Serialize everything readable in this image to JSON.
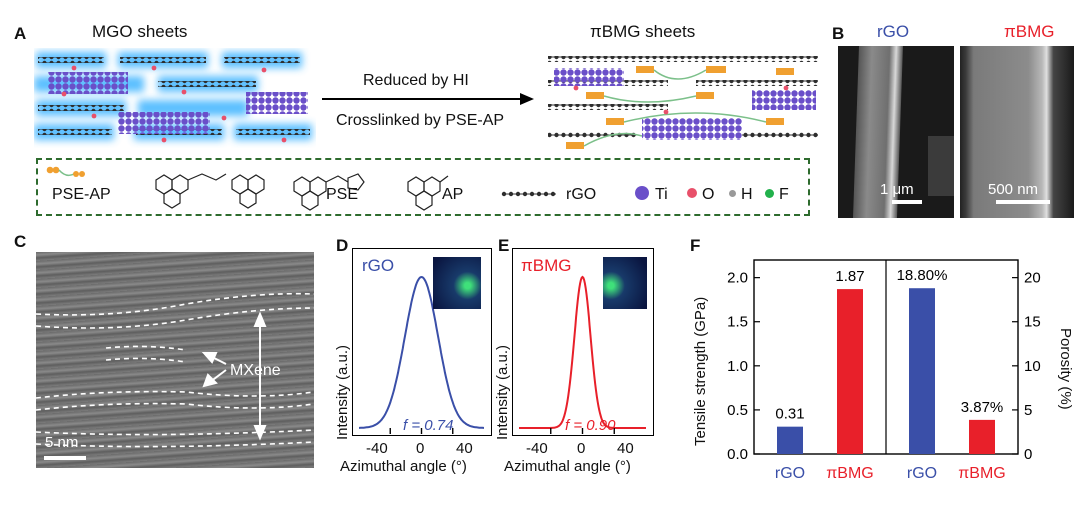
{
  "panelA": {
    "letter": "A",
    "left_title": "MGO sheets",
    "right_title": "πBMG sheets",
    "arrow_top": "Reduced by HI",
    "arrow_bottom": "Crosslinked by PSE-AP",
    "legend": {
      "pse_ap": "PSE-AP",
      "pse": "PSE",
      "ap": "AP",
      "rgo": "rGO",
      "ti": "Ti",
      "o": "O",
      "h": "H",
      "f": "F"
    }
  },
  "panelB": {
    "letter": "B",
    "left_label": "rGO",
    "right_label": "πBMG",
    "left_scale": "1 μm",
    "right_scale": "500 nm"
  },
  "panelC": {
    "letter": "C",
    "label": "MXene",
    "scale": "5 nm"
  },
  "panelD": {
    "letter": "D",
    "label": "rGO",
    "f_value": "f = 0.74",
    "ylabel": "Intensity (a.u.)",
    "xlabel": "Azimuthal angle (°)",
    "ticks": [
      "-40",
      "0",
      "40"
    ]
  },
  "panelE": {
    "letter": "E",
    "label": "πBMG",
    "f_value": "f = 0.90",
    "ylabel": "Intensity (a.u.)",
    "xlabel": "Azimuthal angle (°)",
    "ticks": [
      "-40",
      "0",
      "40"
    ]
  },
  "panelF": {
    "letter": "F",
    "ylabel_left": "Tensile strength (GPa)",
    "ylabel_right": "Porosity (%)",
    "left_ticks": [
      "0.0",
      "0.5",
      "1.0",
      "1.5",
      "2.0"
    ],
    "right_ticks": [
      "0",
      "5",
      "10",
      "15",
      "20"
    ]
  },
  "colors": {
    "blue": "#3a4fa8",
    "red": "#e8202a",
    "green_dash": "#2e6b2e"
  },
  "chart_data": [
    {
      "type": "line",
      "panel": "D",
      "x": [
        -80,
        -60,
        -40,
        -20,
        0,
        20,
        40,
        60,
        80
      ],
      "fwhm_deg": 50,
      "peak_center": 0,
      "orientation_factor": 0.74,
      "xlim": [
        -80,
        80
      ]
    },
    {
      "type": "line",
      "panel": "E",
      "x": [
        -80,
        -60,
        -40,
        -20,
        0,
        20,
        40,
        60,
        80
      ],
      "fwhm_deg": 24,
      "peak_center": 0,
      "orientation_factor": 0.9,
      "xlim": [
        -80,
        80
      ]
    },
    {
      "type": "bar",
      "panel": "F",
      "groups": [
        {
          "metric": "Tensile strength (GPa)",
          "categories": [
            "rGO",
            "πBMG"
          ],
          "values": [
            0.31,
            1.87
          ],
          "labels": [
            "0.31",
            "1.87"
          ],
          "ylim": [
            0,
            2.2
          ]
        },
        {
          "metric": "Porosity (%)",
          "categories": [
            "rGO",
            "πBMG"
          ],
          "values": [
            18.8,
            3.87
          ],
          "labels": [
            "18.80%",
            "3.87%"
          ],
          "ylim": [
            0,
            22
          ]
        }
      ]
    }
  ]
}
